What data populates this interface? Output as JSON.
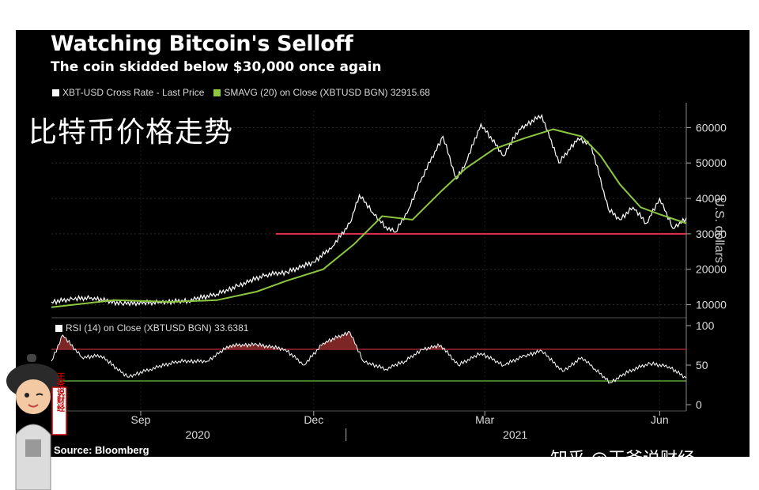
{
  "header": {
    "title": "Watching Bitcoin's Selloff",
    "subtitle": "The coin skidded below $30,000 once again"
  },
  "legend": {
    "price_label": "XBT-USD Cross Rate - Last Price",
    "sma_label": "SMAVG (20)  on Close (XBTUSD BGN) 32915.68",
    "rsi_label": "RSI (14)  on Close (XBTUSD BGN) 33.6381"
  },
  "overlay_text": "比特币价格走势",
  "footer": {
    "source": "Source: Bloomberg",
    "watermark": "知乎 @王爷说财经"
  },
  "mascot_stamp": "王爷说财经",
  "colors": {
    "background": "#000000",
    "price_line": "#ffffff",
    "sma_line": "#8dc63f",
    "support_line": "#e0314b",
    "rsi_line": "#ffffff",
    "rsi_overbought": "#c0283c",
    "rsi_oversold": "#6fbf4a",
    "rsi_fill": "#8a2a2a"
  },
  "chart_data": [
    {
      "type": "line",
      "title": "Watching Bitcoin's Selloff",
      "ylabel": "U.S. dollars",
      "ylim": [
        5000,
        67000
      ],
      "y_ticks": [
        10000,
        20000,
        30000,
        40000,
        50000,
        60000
      ],
      "y_tick_labels": [
        "10000",
        "20000",
        "30000",
        "40000",
        "50000",
        "60000"
      ],
      "x_range": [
        "2020-07-30",
        "2021-06-29"
      ],
      "x_ticks": [
        {
          "date": "2020-09-15",
          "label": "Sep"
        },
        {
          "date": "2020-12-15",
          "label": "Dec"
        },
        {
          "date": "2021-03-15",
          "label": "Mar"
        },
        {
          "date": "2021-06-15",
          "label": "Jun"
        }
      ],
      "year_labels": [
        {
          "date": "2020-10-15",
          "label": "2020"
        },
        {
          "date": "2021-03-31",
          "label": "2021"
        }
      ],
      "reference_lines": [
        {
          "value": 30000,
          "from": "2020-11-25",
          "to": "2021-06-29"
        }
      ],
      "series": [
        {
          "name": "XBT-USD Cross Rate - Last Price",
          "x": [
            "2020-07-30",
            "2020-08-10",
            "2020-08-20",
            "2020-09-05",
            "2020-09-25",
            "2020-10-10",
            "2020-10-25",
            "2020-11-05",
            "2020-11-20",
            "2020-12-01",
            "2020-12-15",
            "2020-12-25",
            "2021-01-03",
            "2021-01-08",
            "2021-01-15",
            "2021-01-22",
            "2021-01-27",
            "2021-02-03",
            "2021-02-10",
            "2021-02-21",
            "2021-02-28",
            "2021-03-05",
            "2021-03-13",
            "2021-03-25",
            "2021-04-02",
            "2021-04-14",
            "2021-04-23",
            "2021-05-03",
            "2021-05-10",
            "2021-05-19",
            "2021-05-25",
            "2021-06-01",
            "2021-06-08",
            "2021-06-15",
            "2021-06-22",
            "2021-06-29"
          ],
          "values": [
            10800,
            11600,
            12000,
            10300,
            10700,
            11200,
            13000,
            15300,
            18500,
            19200,
            22000,
            26500,
            33000,
            41000,
            36000,
            32000,
            30500,
            37000,
            46000,
            57500,
            45500,
            50000,
            61000,
            52000,
            59500,
            63500,
            50000,
            57000,
            55000,
            37000,
            34000,
            37500,
            33000,
            40000,
            31500,
            34500
          ]
        },
        {
          "name": "SMAVG (20)",
          "x": [
            "2020-07-30",
            "2020-09-01",
            "2020-10-01",
            "2020-10-25",
            "2020-11-15",
            "2020-12-01",
            "2020-12-20",
            "2021-01-05",
            "2021-01-20",
            "2021-02-05",
            "2021-02-20",
            "2021-03-05",
            "2021-03-20",
            "2021-04-05",
            "2021-04-20",
            "2021-05-05",
            "2021-05-15",
            "2021-05-25",
            "2021-06-05",
            "2021-06-15",
            "2021-06-29"
          ],
          "values": [
            9300,
            11300,
            10800,
            11300,
            13700,
            16800,
            20000,
            27000,
            35000,
            34000,
            42000,
            48500,
            54000,
            57000,
            59500,
            57500,
            52000,
            44000,
            37500,
            35500,
            33000
          ]
        }
      ]
    },
    {
      "type": "line",
      "title": "RSI (14)",
      "ylim": [
        -5,
        105
      ],
      "y_ticks": [
        0,
        50,
        100
      ],
      "y_tick_labels": [
        "0",
        "50",
        "100"
      ],
      "reference_lines": [
        {
          "value": 70
        },
        {
          "value": 30
        }
      ],
      "series": [
        {
          "name": "RSI (14)",
          "x": [
            "2020-07-30",
            "2020-08-05",
            "2020-08-15",
            "2020-08-25",
            "2020-09-08",
            "2020-09-20",
            "2020-10-05",
            "2020-10-20",
            "2020-11-01",
            "2020-11-15",
            "2020-11-30",
            "2020-12-10",
            "2020-12-20",
            "2021-01-03",
            "2021-01-10",
            "2021-01-22",
            "2021-02-01",
            "2021-02-10",
            "2021-02-20",
            "2021-03-01",
            "2021-03-13",
            "2021-03-25",
            "2021-04-05",
            "2021-04-14",
            "2021-04-25",
            "2021-05-05",
            "2021-05-12",
            "2021-05-20",
            "2021-06-01",
            "2021-06-10",
            "2021-06-20",
            "2021-06-29"
          ],
          "values": [
            55,
            88,
            60,
            62,
            35,
            45,
            55,
            55,
            75,
            76,
            70,
            50,
            78,
            92,
            55,
            45,
            55,
            70,
            75,
            50,
            65,
            50,
            62,
            68,
            42,
            60,
            45,
            28,
            45,
            52,
            48,
            33.6
          ]
        }
      ]
    }
  ]
}
